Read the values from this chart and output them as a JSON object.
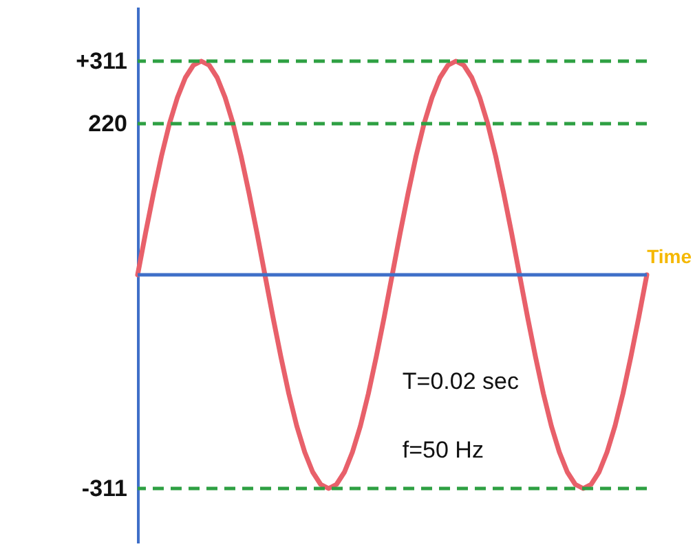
{
  "chart_data": {
    "type": "line",
    "xlabel": "Time",
    "categories": [
      null,
      null,
      null,
      null,
      null,
      null,
      null,
      null,
      null,
      null,
      null,
      null,
      null,
      null,
      null,
      null,
      null,
      null,
      null,
      null,
      null,
      null,
      null,
      null,
      null,
      null,
      null,
      null,
      null,
      null,
      null,
      null,
      null,
      null,
      null,
      null,
      null,
      null,
      null,
      null,
      null,
      null,
      null,
      null,
      null,
      null,
      null,
      null,
      null,
      null,
      null,
      null,
      null,
      null,
      null,
      null,
      null,
      null,
      null,
      null,
      null,
      null,
      null,
      null,
      null
    ],
    "series": [
      {
        "color": "#e8606a",
        "values": [
          0,
          61,
          119,
          173,
          220,
          258,
          287,
          305,
          311,
          305,
          287,
          258,
          220,
          173,
          119,
          61,
          0,
          -61,
          -119,
          -173,
          -220,
          -258,
          -287,
          -305,
          -311,
          -305,
          -287,
          -258,
          -220,
          -173,
          -119,
          -61,
          0,
          61,
          119,
          173,
          220,
          258,
          287,
          305,
          311,
          305,
          287,
          258,
          220,
          173,
          119,
          61,
          0,
          -61,
          -119,
          -173,
          -220,
          -258,
          -287,
          -305,
          -311,
          -305,
          -287,
          -258,
          -220,
          -173,
          -119,
          -61,
          0
        ]
      }
    ],
    "ylim": [
      -390,
      390
    ],
    "yticks": [
      {
        "value": 311,
        "label": "+311"
      },
      220,
      {
        "value": -311,
        "label": "-311"
      }
    ],
    "tick_labels": "y",
    "grid": false,
    "marker": "none",
    "line_style": "solid",
    "ref_lines": [
      {
        "axis": "y",
        "value": 0,
        "color": "#3f6fc8",
        "line_style": "solid"
      },
      {
        "axis": "y",
        "value": 311,
        "color": "#2ea043",
        "line_style": "dashed"
      },
      {
        "axis": "y",
        "value": 220,
        "color": "#2ea043",
        "line_style": "dashed"
      },
      {
        "axis": "y",
        "value": -311,
        "color": "#2ea043",
        "line_style": "dashed"
      }
    ],
    "annotations": [
      "T=0.02 sec",
      "f=50 Hz"
    ]
  }
}
